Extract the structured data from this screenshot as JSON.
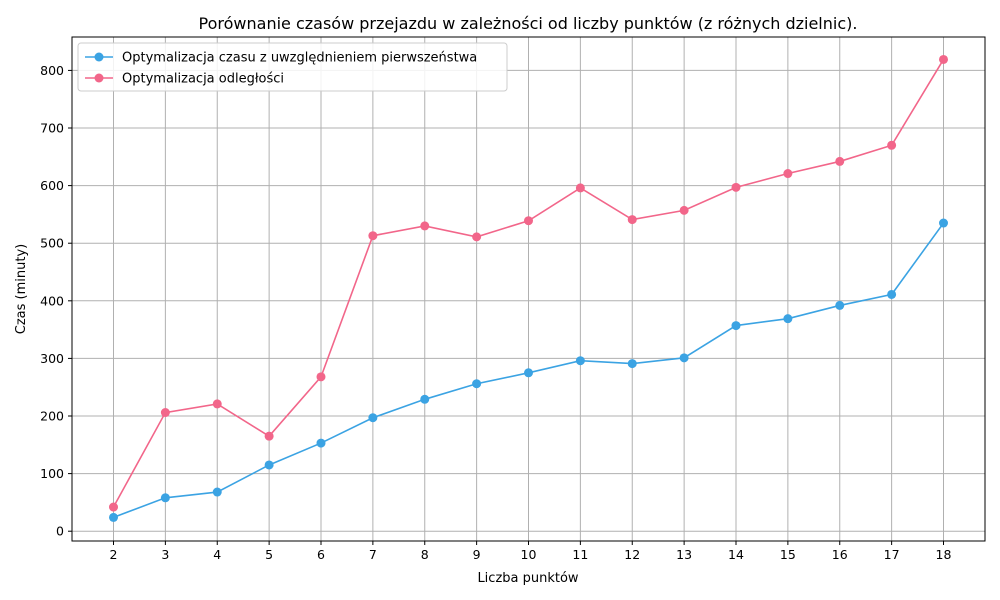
{
  "chart_data": {
    "type": "line",
    "title": "Porównanie czasów przejazdu w zależności od liczby punktów (z różnych dzielnic).",
    "xlabel": "Liczba punktów",
    "ylabel": "Czas (minuty)",
    "x": [
      2,
      3,
      4,
      5,
      6,
      7,
      8,
      9,
      10,
      11,
      12,
      13,
      14,
      15,
      16,
      17,
      18
    ],
    "xlim": [
      1.2,
      18.8
    ],
    "ylim": [
      -17,
      858
    ],
    "yticks": [
      0,
      100,
      200,
      300,
      400,
      500,
      600,
      700,
      800
    ],
    "grid": true,
    "legend_position": "top-left",
    "series": [
      {
        "name": "Optymalizacja czasu z uwzględnieniem pierwszeństwa",
        "color": "#3ba3e3",
        "values": [
          24,
          58,
          68,
          115,
          153,
          197,
          229,
          256,
          275,
          296,
          291,
          301,
          357,
          369,
          392,
          411,
          535
        ]
      },
      {
        "name": "Optymalizacja odległości",
        "color": "#f2668a",
        "values": [
          42,
          206,
          221,
          165,
          268,
          513,
          530,
          511,
          539,
          596,
          541,
          557,
          597,
          621,
          642,
          670,
          819
        ]
      }
    ]
  }
}
